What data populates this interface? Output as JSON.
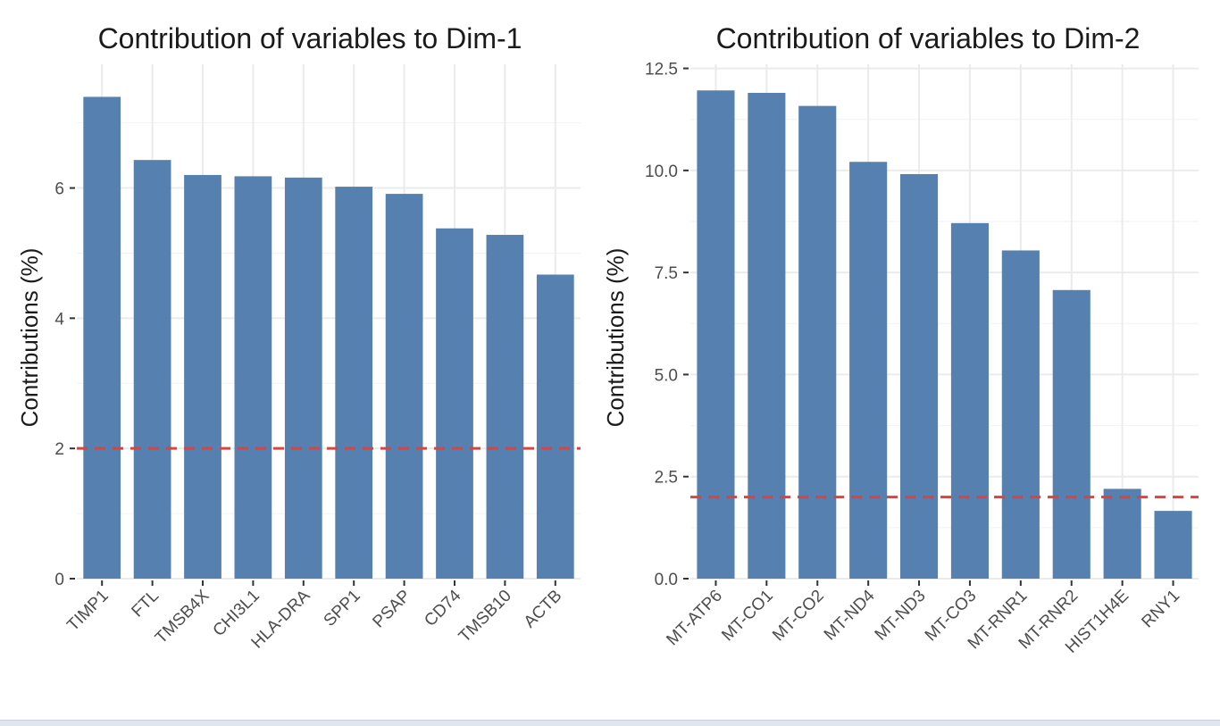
{
  "chart_data": [
    {
      "type": "bar",
      "title": "Contribution of variables to Dim-1",
      "xlabel": "",
      "ylabel": "Contributions (%)",
      "categories": [
        "TIMP1",
        "FTL",
        "TMSB4X",
        "CHI3L1",
        "HLA-DRA",
        "SPP1",
        "PSAP",
        "CD74",
        "TMSB10",
        "ACTB"
      ],
      "values": [
        7.4,
        6.43,
        6.2,
        6.18,
        6.16,
        6.02,
        5.91,
        5.38,
        5.28,
        4.67
      ],
      "ylim": [
        0,
        7.9
      ],
      "yticks": [
        0,
        2,
        4,
        6
      ],
      "ytick_labels": [
        "0",
        "2",
        "4",
        "6"
      ],
      "reference_line": 2,
      "grid": true,
      "bar_color": "#5580b0",
      "reference_color": "#e0413a"
    },
    {
      "type": "bar",
      "title": "Contribution of variables to Dim-2",
      "xlabel": "",
      "ylabel": "Contributions (%)",
      "categories": [
        "MT-ATP6",
        "MT-CO1",
        "MT-CO2",
        "MT-ND4",
        "MT-ND3",
        "MT-CO3",
        "MT-RNR1",
        "MT-RNR2",
        "HIST1H4E",
        "RNY1"
      ],
      "values": [
        11.96,
        11.9,
        11.58,
        10.21,
        9.91,
        8.71,
        8.04,
        7.07,
        2.2,
        1.66
      ],
      "ylim": [
        0,
        12.6
      ],
      "yticks": [
        0,
        2.5,
        5,
        7.5,
        10,
        12.5
      ],
      "ytick_labels": [
        "0.0",
        "2.5",
        "5.0",
        "7.5",
        "10.0",
        "12.5"
      ],
      "reference_line": 2,
      "grid": true,
      "bar_color": "#5580b0",
      "reference_color": "#e0413a"
    }
  ]
}
